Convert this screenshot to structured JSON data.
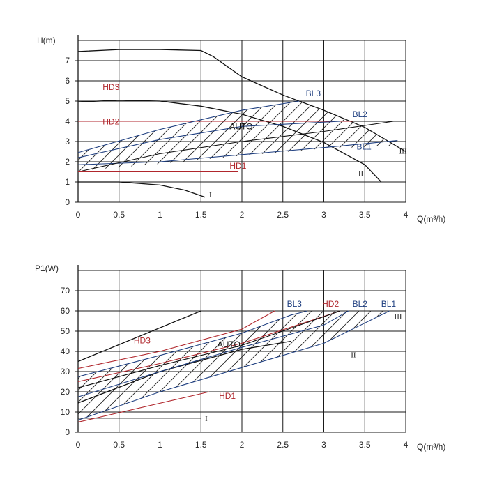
{
  "colors": {
    "grid": "#1a1a1a",
    "curve": "#111111",
    "red": "#b0262c",
    "blue": "#1f3f80",
    "hatch": "#222222"
  },
  "chart_data": [
    {
      "type": "line",
      "ylabel": "H(m)",
      "xlabel": "Q(m³/h)",
      "xlim": [
        0,
        4
      ],
      "ylim": [
        0,
        8
      ],
      "xticks": [
        "0",
        "0.5",
        "1",
        "1.5",
        "2",
        "2.5",
        "3",
        "3.5",
        "4"
      ],
      "yticks": [
        "0",
        "1",
        "2",
        "3",
        "4",
        "5",
        "6",
        "7"
      ],
      "grid": true,
      "series": [
        {
          "name": "III",
          "color": "#111111",
          "points": [
            [
              0,
              7.45
            ],
            [
              0.5,
              7.55
            ],
            [
              1,
              7.55
            ],
            [
              1.5,
              7.5
            ],
            [
              1.65,
              7.2
            ],
            [
              2,
              6.2
            ],
            [
              2.5,
              5.3
            ],
            [
              3,
              4.55
            ],
            [
              3.5,
              3.7
            ],
            [
              4,
              2.5
            ]
          ]
        },
        {
          "name": "II",
          "color": "#111111",
          "points": [
            [
              0,
              4.95
            ],
            [
              0.5,
              5.05
            ],
            [
              1,
              5.0
            ],
            [
              1.5,
              4.75
            ],
            [
              2,
              4.35
            ],
            [
              2.5,
              3.75
            ],
            [
              3,
              2.95
            ],
            [
              3.5,
              1.85
            ],
            [
              3.7,
              1.0
            ]
          ]
        },
        {
          "name": "I",
          "color": "#111111",
          "points": [
            [
              0,
              1.0
            ],
            [
              0.5,
              1.0
            ],
            [
              1,
              0.85
            ],
            [
              1.3,
              0.6
            ],
            [
              1.55,
              0.25
            ]
          ]
        },
        {
          "name": "HD3",
          "color": "#b0262c",
          "points": [
            [
              0,
              5.5
            ],
            [
              2.55,
              5.5
            ]
          ]
        },
        {
          "name": "HD2",
          "color": "#b0262c",
          "points": [
            [
              0,
              4.0
            ],
            [
              3.35,
              4.0
            ]
          ]
        },
        {
          "name": "HD1",
          "color": "#b0262c",
          "points": [
            [
              0,
              1.5
            ],
            [
              1.95,
              1.5
            ]
          ]
        },
        {
          "name": "BL3",
          "color": "#1f3f80",
          "points": [
            [
              0,
              2.45
            ],
            [
              1,
              3.6
            ],
            [
              2,
              4.55
            ],
            [
              2.7,
              5.0
            ]
          ]
        },
        {
          "name": "BL2",
          "color": "#1f3f80",
          "points": [
            [
              0,
              2.2
            ],
            [
              1,
              3.1
            ],
            [
              2,
              3.75
            ],
            [
              3.2,
              4.0
            ]
          ]
        },
        {
          "name": "BL1",
          "color": "#1f3f80",
          "points": [
            [
              0,
              1.85
            ],
            [
              1,
              2.0
            ],
            [
              2,
              2.35
            ],
            [
              3,
              2.7
            ],
            [
              3.9,
              3.05
            ]
          ]
        },
        {
          "name": "AUTO",
          "color": "#111111",
          "points": [
            [
              0.05,
              1.55
            ],
            [
              1,
              2.4
            ],
            [
              2,
              3.0
            ],
            [
              3,
              3.5
            ],
            [
              3.85,
              4.0
            ]
          ]
        }
      ],
      "labels": [
        {
          "text": "HD3",
          "x": 0.3,
          "y": 5.55,
          "color": "#b0262c"
        },
        {
          "text": "HD2",
          "x": 0.3,
          "y": 3.85,
          "color": "#b0262c"
        },
        {
          "text": "HD1",
          "x": 1.85,
          "y": 1.65,
          "color": "#b0262c"
        },
        {
          "text": "BL3",
          "x": 2.78,
          "y": 5.25,
          "color": "#1f3f80"
        },
        {
          "text": "BL2",
          "x": 3.35,
          "y": 4.2,
          "color": "#1f3f80"
        },
        {
          "text": "BL1",
          "x": 3.4,
          "y": 2.6,
          "color": "#1f3f80"
        },
        {
          "text": "AUTO",
          "x": 1.85,
          "y": 3.6,
          "color": "#111111"
        },
        {
          "text": "III",
          "x": 3.92,
          "y": 2.4,
          "color": "#111111"
        },
        {
          "text": "II",
          "x": 3.42,
          "y": 1.3,
          "color": "#111111"
        },
        {
          "text": "I",
          "x": 1.6,
          "y": 0.25,
          "color": "#111111"
        }
      ],
      "hatch": {
        "upper": [
          [
            0,
            2.45
          ],
          [
            1,
            3.6
          ],
          [
            2,
            4.55
          ],
          [
            2.7,
            5.0
          ],
          [
            3,
            4.55
          ],
          [
            3.5,
            3.7
          ],
          [
            3.9,
            2.8
          ]
        ],
        "lower": [
          [
            0,
            1.55
          ],
          [
            1,
            1.9
          ],
          [
            2,
            2.3
          ],
          [
            3,
            2.65
          ],
          [
            3.9,
            2.8
          ]
        ],
        "x_start": 0
      }
    },
    {
      "type": "line",
      "ylabel": "P1(W)",
      "xlabel": "Q(m³/h)",
      "xlim": [
        0,
        4
      ],
      "ylim": [
        0,
        80
      ],
      "xticks": [
        "0",
        "0.5",
        "1",
        "1.5",
        "2",
        "2.5",
        "3",
        "3.5",
        "4"
      ],
      "yticks": [
        "0",
        "10",
        "20",
        "30",
        "40",
        "50",
        "60",
        "70"
      ],
      "grid": true,
      "series": [
        {
          "name": "III",
          "color": "#111111",
          "points": [
            [
              0,
              35
            ],
            [
              1.5,
              60
            ]
          ]
        },
        {
          "name": "II",
          "color": "#111111",
          "points": [
            [
              0,
              14.5
            ],
            [
              1,
              30
            ],
            [
              2,
              41
            ],
            [
              2.6,
              45
            ]
          ]
        },
        {
          "name": "I",
          "color": "#111111",
          "points": [
            [
              0,
              7
            ],
            [
              1.5,
              7
            ]
          ]
        },
        {
          "name": "HD3",
          "color": "#b0262c",
          "points": [
            [
              0,
              31.5
            ],
            [
              1,
              40
            ],
            [
              2,
              51
            ],
            [
              2.4,
              60
            ]
          ]
        },
        {
          "name": "HD2",
          "color": "#b0262c",
          "points": [
            [
              0,
              25
            ],
            [
              1,
              34
            ],
            [
              2,
              44
            ],
            [
              3.2,
              60
            ]
          ]
        },
        {
          "name": "HD1",
          "color": "#b0262c",
          "points": [
            [
              0,
              5
            ],
            [
              1.6,
              20
            ]
          ]
        },
        {
          "name": "BL3",
          "color": "#1f3f80",
          "points": [
            [
              0,
              27.5
            ],
            [
              1,
              38
            ],
            [
              2,
              49
            ],
            [
              2.6,
              58
            ],
            [
              2.8,
              60
            ]
          ]
        },
        {
          "name": "BL2",
          "color": "#1f3f80",
          "points": [
            [
              0,
              17.5
            ],
            [
              1,
              30
            ],
            [
              2,
              42
            ],
            [
              3,
              53
            ],
            [
              3.3,
              60
            ]
          ]
        },
        {
          "name": "BL1",
          "color": "#1f3f80",
          "points": [
            [
              0,
              6
            ],
            [
              1,
              20
            ],
            [
              2,
              32
            ],
            [
              3,
              44
            ],
            [
              3.8,
              60
            ]
          ]
        },
        {
          "name": "AUTO",
          "color": "#111111",
          "points": [
            [
              0,
              22
            ],
            [
              1,
              33
            ],
            [
              2,
              43
            ],
            [
              3.2,
              60
            ]
          ]
        }
      ],
      "labels": [
        {
          "text": "BL3",
          "x": 2.55,
          "y": 62,
          "color": "#1f3f80"
        },
        {
          "text": "HD2",
          "x": 2.98,
          "y": 62,
          "color": "#b0262c"
        },
        {
          "text": "BL2",
          "x": 3.35,
          "y": 62,
          "color": "#1f3f80"
        },
        {
          "text": "BL1",
          "x": 3.7,
          "y": 62,
          "color": "#1f3f80"
        },
        {
          "text": "HD3",
          "x": 0.68,
          "y": 44,
          "color": "#b0262c"
        },
        {
          "text": "AUTO",
          "x": 1.7,
          "y": 42,
          "color": "#111111"
        },
        {
          "text": "HD1",
          "x": 1.72,
          "y": 16.5,
          "color": "#b0262c"
        },
        {
          "text": "III",
          "x": 3.86,
          "y": 56,
          "color": "#111111"
        },
        {
          "text": "II",
          "x": 3.33,
          "y": 37,
          "color": "#111111"
        },
        {
          "text": "I",
          "x": 1.55,
          "y": 5.5,
          "color": "#111111"
        }
      ],
      "hatch": {
        "upper": [
          [
            0,
            27.5
          ],
          [
            1,
            38
          ],
          [
            2,
            49
          ],
          [
            2.6,
            58
          ],
          [
            2.8,
            60
          ],
          [
            3.8,
            60
          ]
        ],
        "lower": [
          [
            0,
            6
          ],
          [
            1,
            20
          ],
          [
            2,
            32
          ],
          [
            3,
            44
          ],
          [
            3.8,
            60
          ]
        ],
        "x_start": 0
      }
    }
  ]
}
